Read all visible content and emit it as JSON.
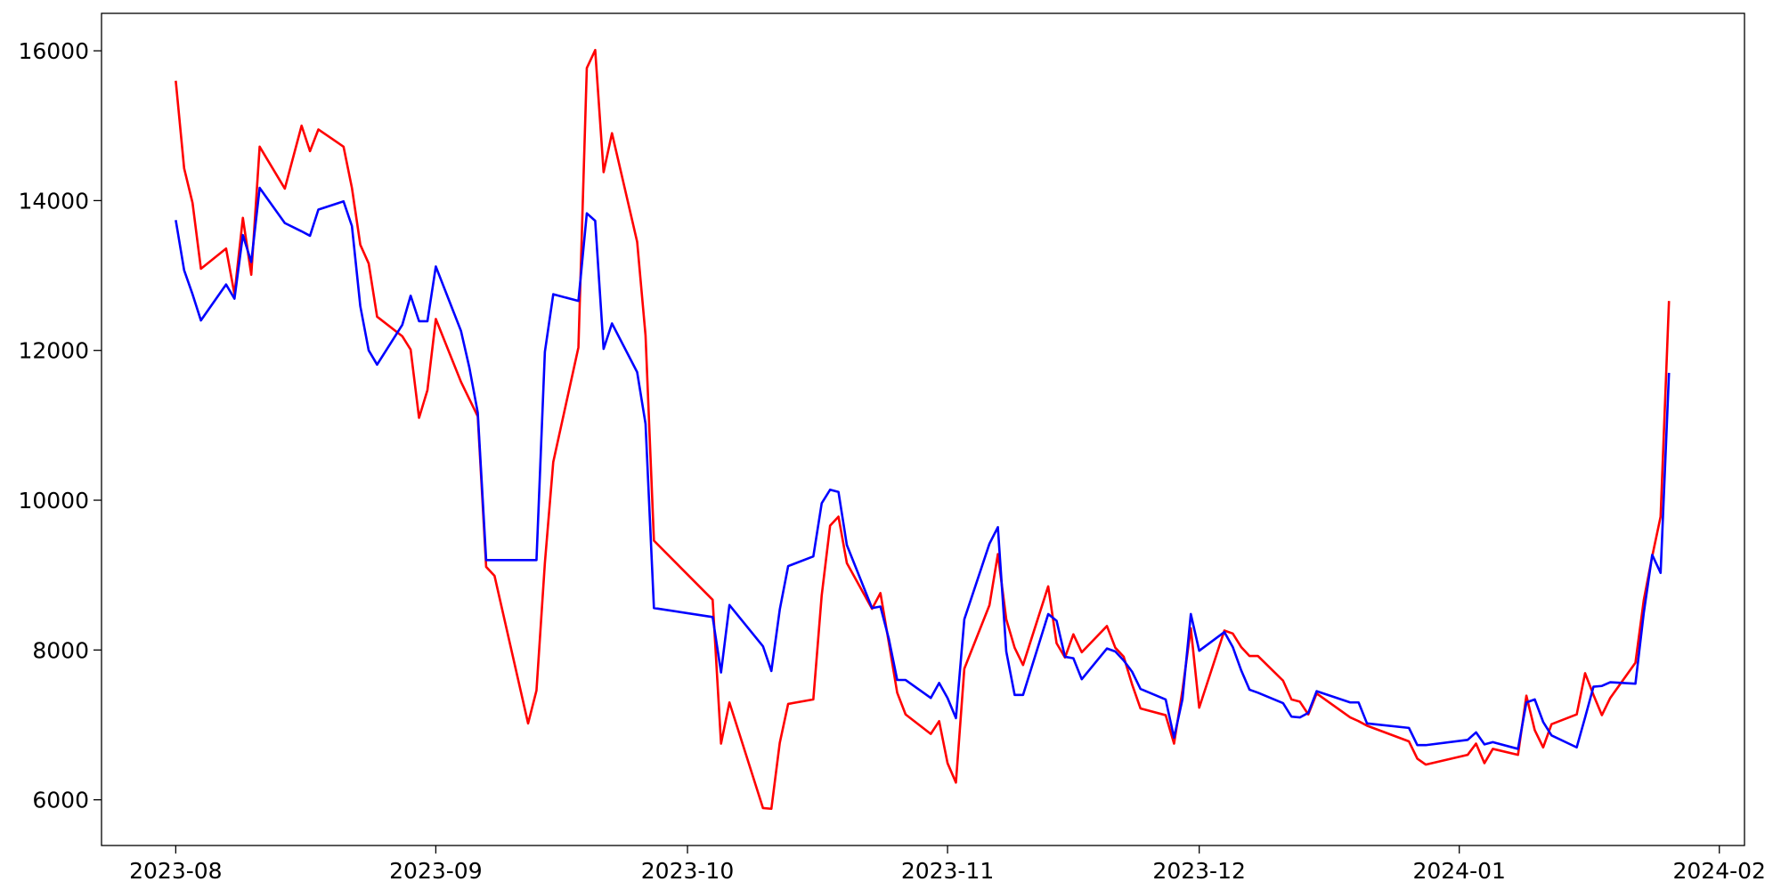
{
  "chart_data": {
    "type": "line",
    "x": [
      0,
      1,
      2,
      3,
      6,
      7,
      8,
      9,
      10,
      13,
      15,
      16,
      17,
      20,
      21,
      22,
      23,
      24,
      27,
      28,
      29,
      30,
      31,
      34,
      35,
      36,
      37,
      38,
      42,
      43,
      44,
      45,
      48,
      49,
      50,
      51,
      52,
      55,
      56,
      57,
      64,
      65,
      66,
      70,
      71,
      72,
      73,
      76,
      77,
      78,
      79,
      80,
      83,
      84,
      85,
      86,
      87,
      90,
      91,
      92,
      93,
      94,
      97,
      98,
      99,
      100,
      101,
      104,
      105,
      106,
      107,
      108,
      111,
      112,
      113,
      114,
      115,
      118,
      119,
      120,
      121,
      122,
      125,
      126,
      127,
      128,
      129,
      132,
      133,
      134,
      135,
      136,
      140,
      141,
      142,
      147,
      148,
      149,
      154,
      155,
      156,
      157,
      160,
      161,
      162,
      163,
      164,
      167,
      168,
      169,
      170,
      171,
      174,
      175,
      176,
      177,
      178
    ],
    "series": [
      {
        "color": "#ff0000",
        "values": [
          15600,
          14430,
          13970,
          13090,
          13360,
          12750,
          13770,
          13010,
          14720,
          14160,
          15000,
          14660,
          14950,
          14720,
          14170,
          13410,
          13160,
          12450,
          12190,
          12010,
          11100,
          11470,
          12420,
          11580,
          11350,
          11120,
          9110,
          8990,
          7020,
          7460,
          9160,
          10510,
          12040,
          15770,
          16010,
          14380,
          14900,
          13450,
          12200,
          9460,
          8670,
          6750,
          7300,
          5890,
          5880,
          6760,
          7280,
          7340,
          8730,
          9660,
          9780,
          9160,
          8550,
          8760,
          8100,
          7430,
          7140,
          6880,
          7050,
          6490,
          6230,
          7750,
          8600,
          9280,
          8410,
          8030,
          7800,
          8850,
          8090,
          7900,
          8210,
          7970,
          8320,
          8030,
          7910,
          7540,
          7220,
          7130,
          6750,
          7460,
          8290,
          7230,
          8260,
          8220,
          8040,
          7920,
          7920,
          7590,
          7340,
          7310,
          7140,
          7420,
          7100,
          7050,
          6990,
          6780,
          6550,
          6470,
          6600,
          6750,
          6490,
          6680,
          6600,
          7390,
          6930,
          6700,
          7010,
          7140,
          7690,
          7400,
          7130,
          7360,
          7830,
          8670,
          9250,
          9780,
          12660
        ]
      },
      {
        "color": "#0000ff",
        "values": [
          13740,
          13070,
          12750,
          12400,
          12880,
          12690,
          13540,
          13180,
          14170,
          13700,
          13590,
          13530,
          13880,
          13990,
          13660,
          12590,
          12000,
          11810,
          12340,
          12730,
          12390,
          12390,
          13120,
          12260,
          11770,
          11170,
          9200,
          9200,
          9200,
          9200,
          11980,
          12750,
          12660,
          13830,
          13730,
          12020,
          12360,
          11710,
          11020,
          8560,
          8440,
          7700,
          8600,
          8050,
          7720,
          8540,
          9120,
          9250,
          9960,
          10140,
          10110,
          9400,
          8560,
          8580,
          8150,
          7600,
          7600,
          7360,
          7560,
          7360,
          7090,
          8410,
          9420,
          9640,
          7980,
          7400,
          7400,
          8480,
          8390,
          7910,
          7890,
          7610,
          8020,
          7980,
          7860,
          7710,
          7480,
          7340,
          6830,
          7340,
          8480,
          7990,
          8240,
          8040,
          7730,
          7470,
          7430,
          7290,
          7110,
          7100,
          7160,
          7450,
          7300,
          7300,
          7020,
          6960,
          6730,
          6730,
          6800,
          6900,
          6740,
          6770,
          6680,
          7300,
          7340,
          7040,
          6860,
          6700,
          7100,
          7510,
          7520,
          7570,
          7550,
          8500,
          9270,
          9030,
          11700
        ]
      }
    ],
    "xlim": [
      -8.85,
      187
    ],
    "xticks": [
      {
        "value": 0,
        "label": "2023-08"
      },
      {
        "value": 31,
        "label": "2023-09"
      },
      {
        "value": 61,
        "label": "2023-10"
      },
      {
        "value": 92,
        "label": "2023-11"
      },
      {
        "value": 122,
        "label": "2023-12"
      },
      {
        "value": 153,
        "label": "2024-01"
      },
      {
        "value": 184,
        "label": "2024-02"
      }
    ],
    "ylim": [
      5390,
      16500
    ],
    "yticks": [
      6000,
      8000,
      10000,
      12000,
      14000,
      16000
    ],
    "grid": false
  }
}
